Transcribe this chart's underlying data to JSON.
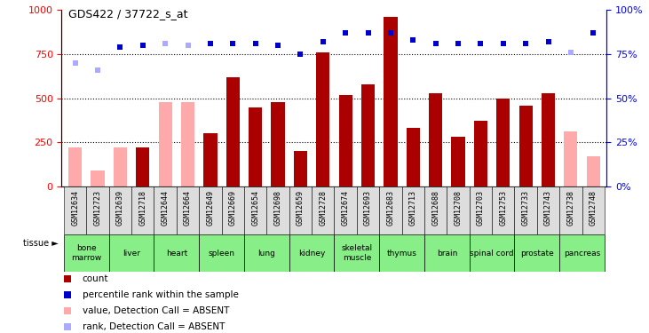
{
  "title": "GDS422 / 37722_s_at",
  "samples": [
    "GSM12634",
    "GSM12723",
    "GSM12639",
    "GSM12718",
    "GSM12644",
    "GSM12664",
    "GSM12649",
    "GSM12669",
    "GSM12654",
    "GSM12698",
    "GSM12659",
    "GSM12728",
    "GSM12674",
    "GSM12693",
    "GSM12683",
    "GSM12713",
    "GSM12688",
    "GSM12708",
    "GSM12703",
    "GSM12753",
    "GSM12733",
    "GSM12743",
    "GSM12738",
    "GSM12748"
  ],
  "tissues": [
    {
      "name": "bone\nmarrow",
      "start": 0,
      "end": 2
    },
    {
      "name": "liver",
      "start": 2,
      "end": 4
    },
    {
      "name": "heart",
      "start": 4,
      "end": 6
    },
    {
      "name": "spleen",
      "start": 6,
      "end": 8
    },
    {
      "name": "lung",
      "start": 8,
      "end": 10
    },
    {
      "name": "kidney",
      "start": 10,
      "end": 12
    },
    {
      "name": "skeletal\nmuscle",
      "start": 12,
      "end": 14
    },
    {
      "name": "thymus",
      "start": 14,
      "end": 16
    },
    {
      "name": "brain",
      "start": 16,
      "end": 18
    },
    {
      "name": "spinal cord",
      "start": 18,
      "end": 20
    },
    {
      "name": "prostate",
      "start": 20,
      "end": 22
    },
    {
      "name": "pancreas",
      "start": 22,
      "end": 24
    }
  ],
  "bar_values": [
    220,
    90,
    220,
    220,
    480,
    480,
    300,
    620,
    450,
    480,
    200,
    760,
    520,
    580,
    960,
    330,
    530,
    280,
    370,
    500,
    460,
    530,
    310,
    170
  ],
  "bar_absent": [
    true,
    true,
    true,
    false,
    true,
    true,
    false,
    false,
    false,
    false,
    false,
    false,
    false,
    false,
    false,
    false,
    false,
    false,
    false,
    false,
    false,
    false,
    true,
    true
  ],
  "rank_values": [
    70,
    66,
    79,
    80,
    81,
    80,
    81,
    81,
    81,
    80,
    75,
    82,
    87,
    87,
    87,
    83,
    81,
    81,
    81,
    81,
    81,
    82,
    76,
    87
  ],
  "rank_absent": [
    true,
    true,
    false,
    false,
    true,
    true,
    false,
    false,
    false,
    false,
    false,
    false,
    false,
    false,
    false,
    false,
    false,
    false,
    false,
    false,
    false,
    false,
    true,
    false
  ],
  "ylim_left": [
    0,
    1000
  ],
  "ylim_right": [
    0,
    100
  ],
  "bar_color_present": "#aa0000",
  "bar_color_absent": "#ffaaaa",
  "rank_color_present": "#0000cc",
  "rank_color_absent": "#aaaaff",
  "tissue_color": "#88ee88",
  "sample_box_color": "#dddddd",
  "legend_items": [
    {
      "color": "#aa0000",
      "label": "count"
    },
    {
      "color": "#0000cc",
      "label": "percentile rank within the sample"
    },
    {
      "color": "#ffaaaa",
      "label": "value, Detection Call = ABSENT"
    },
    {
      "color": "#aaaaff",
      "label": "rank, Detection Call = ABSENT"
    }
  ]
}
